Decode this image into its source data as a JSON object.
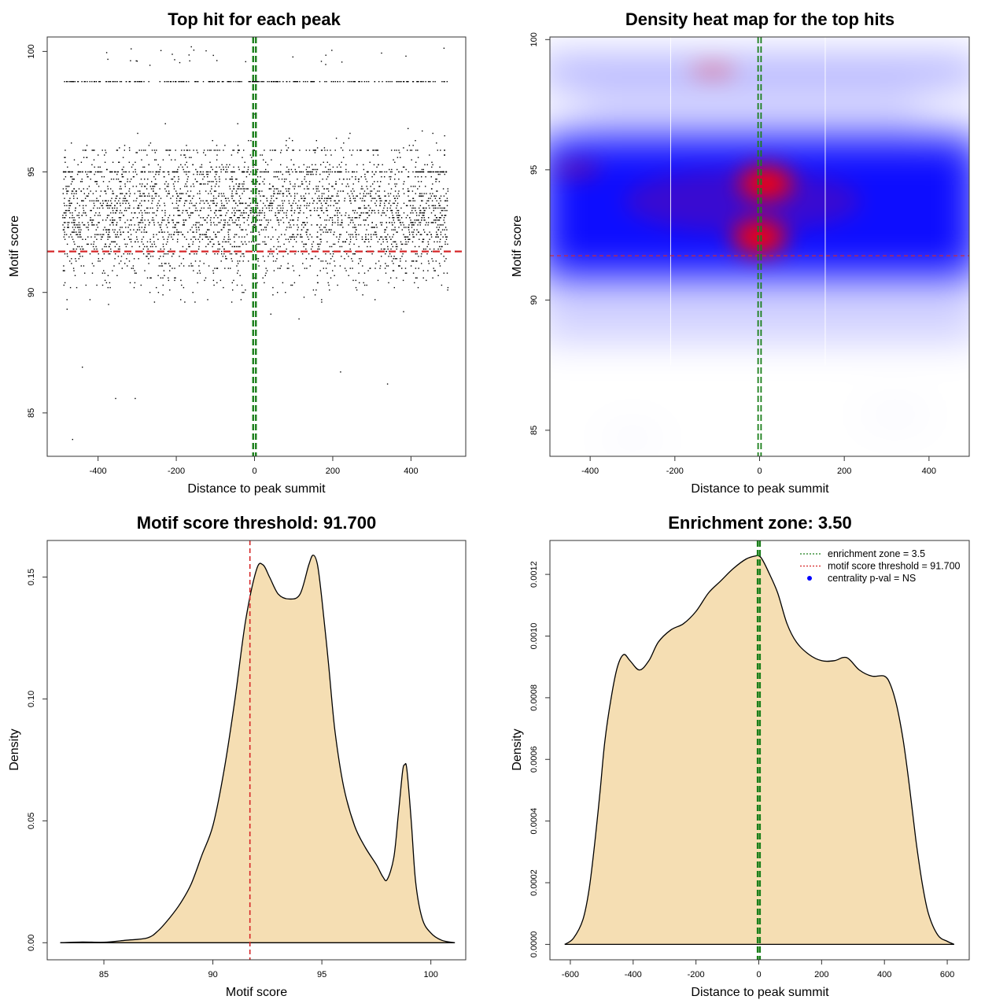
{
  "chart_data": [
    {
      "type": "scatter",
      "title": "Top hit for each peak",
      "xlabel": "Distance to peak summit",
      "ylabel": "Motif score",
      "xlim": [
        -530,
        540
      ],
      "ylim": [
        83.2,
        100.6
      ],
      "xticks": [
        -400,
        -200,
        0,
        200,
        400
      ],
      "yticks": [
        85,
        90,
        95,
        100
      ],
      "xtick_labels": [
        "-400",
        "-200",
        "0",
        "200",
        "400"
      ],
      "ytick_labels": [
        "85",
        "90",
        "95",
        "100"
      ],
      "points_summary": {
        "count_approx": 6000,
        "x_range": [
          -490,
          495
        ],
        "dense_score_band": [
          89,
          98
        ],
        "dense_rows": [
          98.75,
          95.0,
          95.9
        ],
        "outliers": [
          [
            -465,
            83.9
          ],
          [
            -355,
            85.6
          ],
          [
            -305,
            85.6
          ],
          [
            340,
            86.2
          ],
          [
            -440,
            86.9
          ],
          [
            220,
            86.7
          ]
        ]
      },
      "threshold_line": {
        "axis": "y",
        "value": 91.7,
        "color": "#d62728",
        "style": "dashed"
      },
      "zone_lines": {
        "axis": "x",
        "values": [
          -3.5,
          3.5
        ],
        "color": "#1a7f1a",
        "style": "dashed"
      }
    },
    {
      "type": "heatmap",
      "title": "Density heat map for the top hits",
      "xlabel": "Distance to peak summit",
      "ylabel": "Motif score",
      "xlim": [
        -495,
        495
      ],
      "ylim": [
        84.0,
        100.1
      ],
      "xticks": [
        -400,
        -200,
        0,
        200,
        400
      ],
      "yticks": [
        85,
        90,
        95,
        100
      ],
      "xtick_labels": [
        "-400",
        "-200",
        "0",
        "200",
        "400"
      ],
      "ytick_labels": [
        "85",
        "90",
        "95",
        "100"
      ],
      "colormap": [
        "#ffffff",
        "#0000ff",
        "#ff0000"
      ],
      "hotspots": [
        {
          "x": 0,
          "y": 92.4,
          "intensity": "high"
        },
        {
          "x": 15,
          "y": 94.5,
          "intensity": "high"
        },
        {
          "x": -110,
          "y": 98.8,
          "intensity": "medium"
        },
        {
          "x": -430,
          "y": 95.0,
          "intensity": "medium"
        }
      ],
      "threshold_line": {
        "axis": "y",
        "value": 91.7,
        "color": "#d62728",
        "style": "dashed"
      },
      "zone_lines": {
        "axis": "x",
        "values": [
          -3.5,
          3.5
        ],
        "color": "#1a7f1a",
        "style": "dashed"
      }
    },
    {
      "type": "area",
      "title": "Motif score threshold: 91.700",
      "xlabel": "Motif score",
      "ylabel": "Density",
      "xlim": [
        82.4,
        101.6
      ],
      "ylim": [
        -0.007,
        0.165
      ],
      "xticks": [
        85,
        90,
        95,
        100
      ],
      "yticks": [
        0.0,
        0.05,
        0.1,
        0.15
      ],
      "xtick_labels": [
        "85",
        "90",
        "95",
        "100"
      ],
      "ytick_labels": [
        "0.00",
        "0.05",
        "0.10",
        "0.15"
      ],
      "fill_color": "#f5deb3",
      "x": [
        83.0,
        84.0,
        85.0,
        86.0,
        87.0,
        87.5,
        88.0,
        88.5,
        89.0,
        89.5,
        90.0,
        90.5,
        91.0,
        91.5,
        92.0,
        92.3,
        92.6,
        93.0,
        93.5,
        94.0,
        94.4,
        94.6,
        94.8,
        95.0,
        95.3,
        95.6,
        96.0,
        96.5,
        97.0,
        97.5,
        97.8,
        98.0,
        98.3,
        98.5,
        98.7,
        98.8,
        98.9,
        99.1,
        99.3,
        99.6,
        100.0,
        100.5,
        101.1
      ],
      "y": [
        0.0,
        0.0003,
        0.0002,
        0.001,
        0.002,
        0.005,
        0.01,
        0.016,
        0.024,
        0.036,
        0.048,
        0.07,
        0.099,
        0.132,
        0.153,
        0.155,
        0.15,
        0.143,
        0.141,
        0.143,
        0.155,
        0.159,
        0.155,
        0.141,
        0.115,
        0.087,
        0.064,
        0.048,
        0.039,
        0.032,
        0.027,
        0.026,
        0.035,
        0.052,
        0.07,
        0.073,
        0.071,
        0.05,
        0.025,
        0.01,
        0.004,
        0.001,
        0.0
      ],
      "threshold_line": {
        "axis": "x",
        "value": 91.7,
        "color": "#d62728",
        "style": "dashed"
      }
    },
    {
      "type": "area",
      "title": "Enrichment zone: 3.50",
      "xlabel": "Distance to peak summit",
      "ylabel": "Density",
      "xlim": [
        -665,
        670
      ],
      "ylim": [
        -5e-05,
        0.00131
      ],
      "xticks": [
        -600,
        -400,
        -200,
        0,
        200,
        400,
        600
      ],
      "yticks": [
        0.0,
        0.0002,
        0.0004,
        0.0006,
        0.0008,
        0.001,
        0.0012
      ],
      "xtick_labels": [
        "-600",
        "-400",
        "-200",
        "0",
        "200",
        "400",
        "600"
      ],
      "ytick_labels": [
        "0.0000",
        "0.0002",
        "0.0004",
        "0.0006",
        "0.0008",
        "0.0010",
        "0.0012"
      ],
      "fill_color": "#f5deb3",
      "x": [
        -618,
        -590,
        -560,
        -540,
        -520,
        -505,
        -490,
        -470,
        -450,
        -430,
        -410,
        -380,
        -350,
        -320,
        -280,
        -240,
        -200,
        -160,
        -120,
        -80,
        -40,
        -10,
        0,
        10,
        30,
        60,
        90,
        120,
        160,
        200,
        240,
        280,
        320,
        360,
        400,
        420,
        440,
        460,
        480,
        500,
        520,
        540,
        570,
        600,
        622
      ],
      "y": [
        0.0,
        2e-05,
        8e-05,
        0.00018,
        0.00035,
        0.0005,
        0.00066,
        0.0008,
        0.0009,
        0.00094,
        0.00092,
        0.00089,
        0.00092,
        0.00098,
        0.00102,
        0.00104,
        0.00108,
        0.00114,
        0.00118,
        0.00122,
        0.00125,
        0.00126,
        0.00126,
        0.00125,
        0.00121,
        0.00114,
        0.00104,
        0.00098,
        0.00094,
        0.00092,
        0.00092,
        0.00093,
        0.00089,
        0.00087,
        0.00087,
        0.00084,
        0.00077,
        0.00066,
        0.00051,
        0.00034,
        0.0002,
        0.0001,
        3e-05,
        1e-05,
        0.0
      ],
      "zone_lines": {
        "axis": "x",
        "values": [
          -3.5,
          3.5
        ],
        "color": "#1a7f1a",
        "style": "dashed"
      },
      "legend": {
        "position": "top-right",
        "entries": [
          {
            "label": "enrichment zone = 3.5",
            "color": "#1a7f1a",
            "symbol": "dotted-line"
          },
          {
            "label": "motif score threshold = 91.700",
            "color": "#d62728",
            "symbol": "dotted-line"
          },
          {
            "label": "centrality p-val = NS",
            "color": "#0000ff",
            "symbol": "dot"
          }
        ]
      }
    }
  ]
}
